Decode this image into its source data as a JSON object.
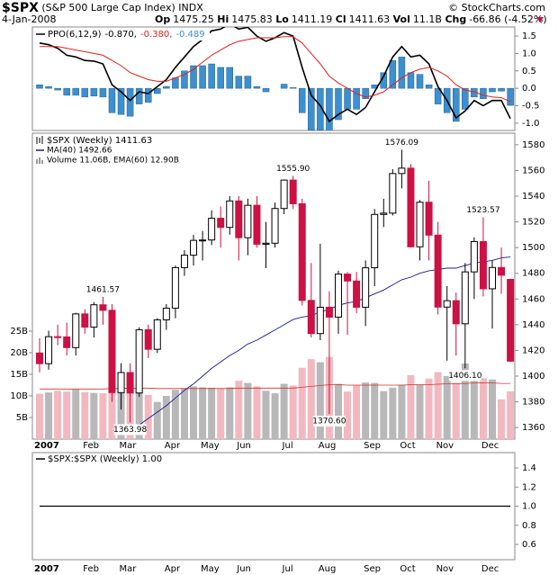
{
  "header": {
    "symbol": "$SPX",
    "name": "(S&P 500 Large Cap Index)",
    "exchange": "INDX",
    "copyright": "© StockCharts.com",
    "date": "4-Jan-2008",
    "stats": [
      {
        "label": "Op",
        "value": "1475.25"
      },
      {
        "label": "Hi",
        "value": "1475.83"
      },
      {
        "label": "Lo",
        "value": "1411.19"
      },
      {
        "label": "Cl",
        "value": "1411.63"
      },
      {
        "label": "Vol",
        "value": "11.1B"
      },
      {
        "label": "Chg",
        "value": "-66.86 (-4.52%)"
      }
    ]
  },
  "chart_data": [
    {
      "type": "ppo",
      "title": "PPO(6,12,9)",
      "ylim": [
        -1.21,
        1.76
      ],
      "yticks": [
        1.5,
        {
          "value": 1,
          "label": "1.0"
        },
        0.5,
        {
          "value": 0,
          "label": "0.0"
        },
        -0.5,
        {
          "value": -1,
          "label": "-1.0"
        }
      ],
      "series": [
        {
          "name": "-0.870,",
          "color": "#000000",
          "kind": "line",
          "values": [
            1.3,
            1.25,
            1.15,
            0.95,
            0.9,
            0.8,
            0.78,
            0.7,
            0.1,
            -0.1,
            -0.35,
            -0.1,
            -0.15,
            0.05,
            0.25,
            0.6,
            0.9,
            1.2,
            1.4,
            1.65,
            1.7,
            1.85,
            1.7,
            1.75,
            1.5,
            1.35,
            1.45,
            1.6,
            1.5,
            0.6,
            -0.2,
            -0.5,
            -0.95,
            -0.75,
            -0.6,
            -0.75,
            -0.55,
            -0.1,
            0.35,
            0.9,
            1.2,
            0.9,
            0.95,
            0.7,
            0.05,
            -0.35,
            -0.85,
            -0.65,
            -0.35,
            -0.5,
            -0.35,
            -0.35,
            -0.87
          ]
        },
        {
          "name": "-0.380,",
          "color": "#e02020",
          "kind": "line",
          "values": [
            1.2,
            1.2,
            1.2,
            1.15,
            1.1,
            1.05,
            1.0,
            0.95,
            0.8,
            0.65,
            0.45,
            0.35,
            0.25,
            0.2,
            0.2,
            0.3,
            0.4,
            0.55,
            0.75,
            0.95,
            1.1,
            1.25,
            1.35,
            1.4,
            1.45,
            1.45,
            1.45,
            1.48,
            1.48,
            1.3,
            1.0,
            0.7,
            0.35,
            0.15,
            0.0,
            -0.15,
            -0.25,
            -0.2,
            -0.1,
            0.1,
            0.3,
            0.45,
            0.55,
            0.6,
            0.5,
            0.35,
            0.1,
            -0.05,
            -0.1,
            -0.2,
            -0.25,
            -0.27,
            -0.38
          ]
        },
        {
          "name": "-0.489",
          "color": "#3d8fcf",
          "kind": "histogram",
          "values": [
            0.1,
            0.05,
            -0.05,
            -0.2,
            -0.2,
            -0.25,
            -0.22,
            -0.25,
            -0.7,
            -0.75,
            -0.8,
            -0.45,
            -0.4,
            -0.15,
            0.05,
            0.3,
            0.5,
            0.65,
            0.65,
            0.7,
            0.6,
            0.6,
            0.35,
            0.35,
            0.05,
            -0.1,
            0,
            0.12,
            0.02,
            -0.7,
            -1.2,
            -1.2,
            -1.3,
            -0.9,
            -0.6,
            -0.6,
            -0.3,
            0.1,
            0.45,
            0.8,
            0.9,
            0.45,
            0.4,
            0.1,
            -0.45,
            -0.7,
            -0.95,
            -0.6,
            -0.25,
            -0.3,
            -0.1,
            -0.08,
            -0.489
          ]
        }
      ]
    },
    {
      "type": "candlestick",
      "title": "$SPX (Weekly) 1411.63",
      "categories": [
        "2007",
        null,
        null,
        null,
        "Feb",
        null,
        null,
        null,
        "Mar",
        null,
        null,
        null,
        null,
        "Apr",
        null,
        null,
        null,
        "May",
        null,
        null,
        null,
        "Jun",
        null,
        null,
        null,
        null,
        "Jul",
        null,
        null,
        null,
        "Aug",
        null,
        null,
        null,
        null,
        "Sep",
        null,
        null,
        null,
        "Oct",
        null,
        null,
        null,
        "Nov",
        null,
        null,
        null,
        null,
        "Dec",
        null,
        null,
        null,
        null
      ],
      "ylim": [
        1351,
        1589
      ],
      "yticks": [
        1360,
        1380,
        1400,
        1420,
        1440,
        1460,
        1480,
        1500,
        1520,
        1540,
        1560,
        1580
      ],
      "up_color": "#000000",
      "down_color": "#cc1144",
      "open": [
        1418,
        1409.7,
        1430.7,
        1430.5,
        1422.2,
        1448.4,
        1438.1,
        1455.5,
        1451.2,
        1387.2,
        1402.8,
        1386.9,
        1436.1,
        1420.9,
        1443.8,
        1452.9,
        1484.4,
        1494.1,
        1505.6,
        1505.9,
        1522.8,
        1515.7,
        1536.3,
        1507.7,
        1532.9,
        1502.6,
        1503.4,
        1530.4,
        1552.5,
        1534.1,
        1458.9,
        1433.1,
        1453.6,
        1445.9,
        1479.4,
        1474,
        1453.6,
        1484.3,
        1525.8,
        1526.8,
        1557.6,
        1561.8,
        1500.6,
        1535.3,
        1509.7,
        1453.7,
        1458.7,
        1440.7,
        1481.1,
        1504.7,
        1467.95,
        1484.5,
        1475.25
      ],
      "high": [
        1429.4,
        1435.3,
        1440.1,
        1441.6,
        1449.3,
        1452,
        1457.6,
        1461.57,
        1456,
        1410,
        1410,
        1438,
        1440,
        1445,
        1456,
        1486,
        1498,
        1510,
        1513,
        1529,
        1532,
        1540,
        1540,
        1538,
        1540,
        1520,
        1535,
        1553,
        1555.9,
        1538,
        1488,
        1503,
        1466,
        1482,
        1481,
        1481,
        1490,
        1530,
        1538,
        1561,
        1576.09,
        1565,
        1537,
        1552,
        1520,
        1470,
        1465,
        1488,
        1508,
        1523.57,
        1490,
        1500,
        1475.83
      ],
      "low": [
        1403,
        1405,
        1424,
        1416,
        1416,
        1433,
        1430,
        1440,
        1380,
        1374,
        1363.98,
        1384,
        1414,
        1418,
        1436,
        1445,
        1478,
        1486,
        1490,
        1502,
        1500,
        1510,
        1490,
        1494,
        1500,
        1484,
        1500,
        1526,
        1530,
        1455,
        1430,
        1428,
        1370.6,
        1433,
        1432,
        1449,
        1439,
        1470,
        1516,
        1525,
        1546,
        1500,
        1490,
        1490,
        1448,
        1412,
        1416,
        1406.1,
        1460,
        1462,
        1437,
        1464,
        1411.19
      ],
      "close": [
        1409.7,
        1430.7,
        1430.5,
        1422.2,
        1448.4,
        1438.1,
        1455.5,
        1451.2,
        1387.2,
        1402.8,
        1386.9,
        1436.1,
        1420.9,
        1443.8,
        1452.9,
        1484.4,
        1494.1,
        1505.6,
        1505.9,
        1522.8,
        1515.7,
        1536.3,
        1507.7,
        1532.9,
        1502.6,
        1503.4,
        1530.4,
        1552.5,
        1534.1,
        1458.9,
        1433.1,
        1453.6,
        1445.9,
        1479.4,
        1474,
        1453.6,
        1484.3,
        1525.8,
        1526.8,
        1557.6,
        1561.8,
        1500.6,
        1535.3,
        1509.7,
        1453.7,
        1458.7,
        1440.7,
        1481.1,
        1504.7,
        1467.95,
        1484.5,
        1478.5,
        1411.63
      ],
      "high_labels": [
        null,
        null,
        null,
        null,
        null,
        null,
        null,
        "1461.57",
        null,
        null,
        null,
        null,
        null,
        null,
        null,
        null,
        null,
        null,
        null,
        null,
        null,
        null,
        null,
        null,
        null,
        null,
        null,
        null,
        "1555.90",
        null,
        null,
        null,
        null,
        null,
        null,
        null,
        null,
        null,
        null,
        null,
        "1576.09",
        null,
        null,
        null,
        null,
        null,
        null,
        null,
        null,
        "1523.57",
        null,
        null,
        null
      ],
      "low_labels": [
        null,
        null,
        null,
        null,
        null,
        null,
        null,
        null,
        null,
        null,
        "1363.98",
        null,
        null,
        null,
        null,
        null,
        null,
        null,
        null,
        null,
        null,
        null,
        null,
        null,
        null,
        null,
        null,
        null,
        null,
        null,
        null,
        null,
        "1370.60",
        null,
        null,
        null,
        null,
        null,
        null,
        null,
        null,
        null,
        null,
        null,
        null,
        null,
        null,
        "1406.10",
        null,
        null,
        null,
        null,
        null
      ],
      "ma": {
        "name": "MA(40) 1492.66",
        "color": "#1a1a8c",
        "values": [
          null,
          null,
          null,
          null,
          null,
          null,
          null,
          null,
          null,
          null,
          1358,
          1362,
          1367,
          1372,
          1377,
          1383,
          1389,
          1394,
          1400,
          1406,
          1411,
          1416,
          1420,
          1425,
          1428,
          1432,
          1436,
          1440,
          1444,
          1446,
          1447,
          1450,
          1452,
          1455,
          1457,
          1458,
          1461,
          1464,
          1467,
          1471,
          1475,
          1477,
          1480,
          1482,
          1483,
          1484,
          1484,
          1486,
          1488,
          1489,
          1490,
          1492,
          1492.66
        ]
      },
      "volume": {
        "name": "Volume 11.06B, EMA(60) 12.90B",
        "up_color": "#b8b8b8",
        "down_color": "#f2b8c0",
        "ema_color": "#d03030",
        "ylim": [
          0,
          70.8
        ],
        "yticks": [
          {
            "value": 5,
            "label": "5B"
          },
          {
            "value": 10,
            "label": "10B"
          },
          {
            "value": 15,
            "label": "15B"
          },
          {
            "value": 20,
            "label": "20B"
          },
          {
            "value": 25,
            "label": "25B"
          }
        ],
        "values": [
          10.5,
          10.8,
          11.2,
          11,
          11.5,
          10.9,
          10.7,
          10.6,
          15,
          12.6,
          13.2,
          11.8,
          10.2,
          8.6,
          10,
          11.4,
          11.8,
          12.2,
          12,
          11.9,
          11.6,
          12,
          13.5,
          13,
          12.2,
          11.2,
          10.6,
          12.8,
          12.4,
          16.5,
          18.5,
          17.8,
          19,
          12.8,
          11,
          12.5,
          13.1,
          13,
          11.1,
          11.9,
          12.6,
          14.8,
          12.6,
          14,
          15.5,
          14.6,
          13,
          17.5,
          14.8,
          14.1,
          13.8,
          9.2,
          11.06
        ],
        "ema": [
          11.6,
          11.6,
          11.6,
          11.6,
          11.6,
          11.6,
          11.6,
          11.6,
          11.7,
          11.7,
          11.8,
          11.8,
          11.8,
          11.7,
          11.7,
          11.7,
          11.7,
          11.7,
          11.7,
          11.7,
          11.7,
          11.7,
          11.8,
          11.8,
          11.8,
          11.8,
          11.8,
          11.8,
          11.8,
          12,
          12.2,
          12.4,
          12.6,
          12.6,
          12.5,
          12.5,
          12.5,
          12.5,
          12.5,
          12.5,
          12.5,
          12.6,
          12.6,
          12.6,
          12.7,
          12.8,
          12.8,
          12.9,
          13,
          13,
          13,
          12.9,
          12.9
        ]
      }
    },
    {
      "type": "line",
      "title": "$SPX:$SPX (Weekly) 1.00",
      "color": "#000000",
      "ylim": [
        0.44,
        1.56
      ],
      "yticks": [
        1.4,
        1.2,
        {
          "value": 1,
          "label": "1.0"
        },
        0.8,
        0.6
      ],
      "values": [
        1,
        1,
        1,
        1,
        1,
        1,
        1,
        1,
        1,
        1,
        1,
        1,
        1,
        1,
        1,
        1,
        1,
        1,
        1,
        1,
        1,
        1,
        1,
        1,
        1,
        1,
        1,
        1,
        1,
        1,
        1,
        1,
        1,
        1,
        1,
        1,
        1,
        1,
        1,
        1,
        1,
        1,
        1,
        1,
        1,
        1,
        1,
        1,
        1,
        1,
        1,
        1,
        1
      ]
    }
  ]
}
